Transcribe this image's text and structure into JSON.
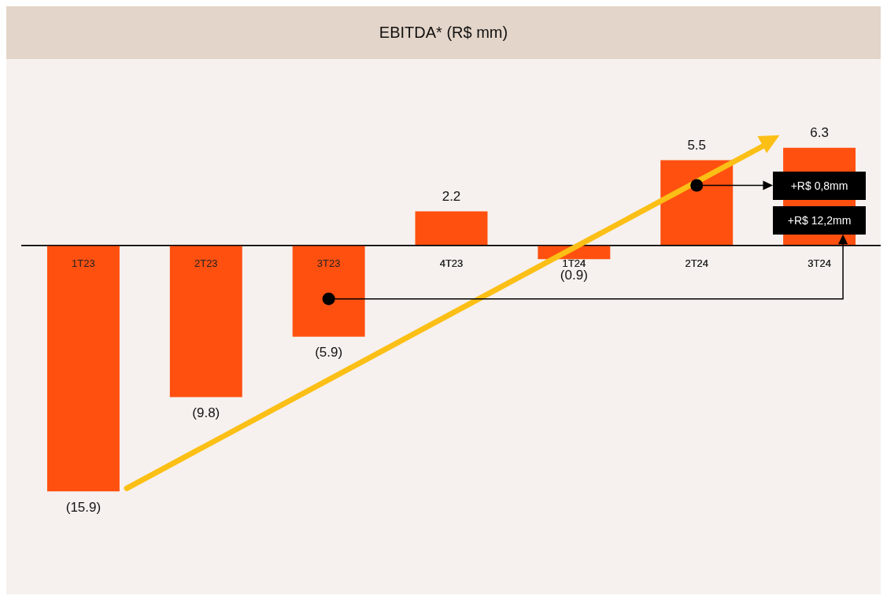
{
  "chart_data": {
    "type": "bar",
    "title": "EBITDA* (R$ mm)",
    "categories": [
      "1T23",
      "2T23",
      "3T23",
      "4T23",
      "1T24",
      "2T24",
      "3T24"
    ],
    "values": [
      -15.9,
      -9.8,
      -5.9,
      2.2,
      -0.9,
      5.5,
      6.3
    ],
    "value_labels": [
      "(15.9)",
      "(9.8)",
      "(5.9)",
      "2.2",
      "(0.9)",
      "5.5",
      "6.3"
    ],
    "color": "#ff5010",
    "tick_labels": "x",
    "grid": false,
    "legend": false,
    "annotations": [
      "+R$ 0,8mm",
      "+R$ 12,2mm"
    ]
  }
}
